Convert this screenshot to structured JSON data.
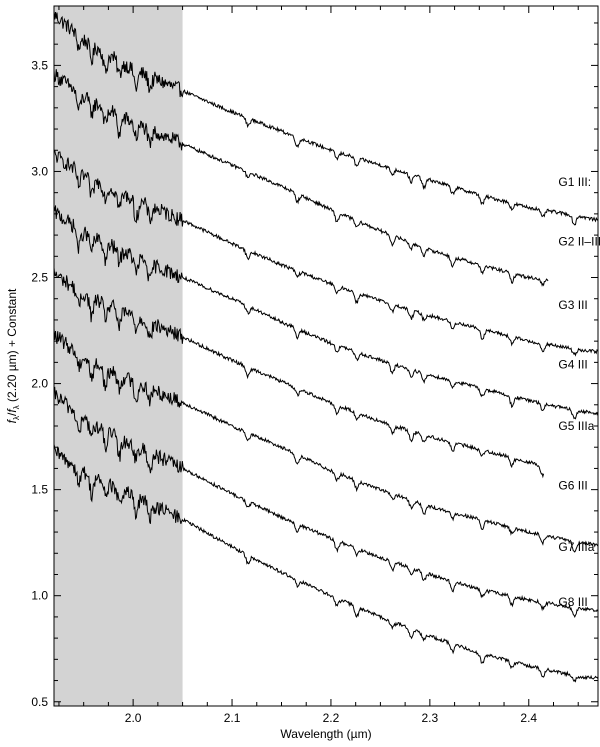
{
  "chart_data": {
    "type": "line",
    "title": "",
    "xlabel": "Wavelength (µm)",
    "ylabel": "fλ / fλ (2.20 µm) + Constant",
    "ylabel_parts": {
      "f1": "f",
      "sub1": "λ",
      "slash": "/",
      "f2": "f",
      "sub2": "λ",
      "rest": " (2.20 µm) + Constant"
    },
    "xlim": [
      1.92,
      2.47
    ],
    "ylim": [
      0.48,
      3.78
    ],
    "x_ticks": [
      2.0,
      2.1,
      2.2,
      2.3,
      2.4
    ],
    "x_tick_labels": [
      "2.0",
      "2.1",
      "2.2",
      "2.3",
      "2.4"
    ],
    "y_ticks": [
      0.5,
      1.0,
      1.5,
      2.0,
      2.5,
      3.0,
      3.5
    ],
    "y_tick_labels": [
      "0.5",
      "1.0",
      "1.5",
      "2.0",
      "2.5",
      "3.0",
      "3.5"
    ],
    "grid": false,
    "legend": "none",
    "shaded_region": {
      "x": [
        1.92,
        2.05
      ],
      "color": "#d3d3d3"
    },
    "line_color": "#000000",
    "absorption_features_um": [
      1.945,
      1.958,
      1.972,
      1.986,
      2.003,
      2.017,
      2.116,
      2.166,
      2.206,
      2.226,
      2.262,
      2.281,
      2.294,
      2.323,
      2.353,
      2.383,
      2.414,
      2.446
    ],
    "series": [
      {
        "name": "G1 III:",
        "x_end": 2.47,
        "points": [
          [
            1.92,
            3.74
          ],
          [
            1.95,
            3.62
          ],
          [
            2.0,
            3.48
          ],
          [
            2.05,
            3.38
          ],
          [
            2.1,
            3.28
          ],
          [
            2.15,
            3.19
          ],
          [
            2.2,
            3.1
          ],
          [
            2.25,
            3.03
          ],
          [
            2.3,
            2.96
          ],
          [
            2.35,
            2.89
          ],
          [
            2.4,
            2.83
          ],
          [
            2.45,
            2.79
          ],
          [
            2.47,
            2.77
          ]
        ]
      },
      {
        "name": "G2 II–III",
        "x_end": 2.42,
        "points": [
          [
            1.92,
            3.46
          ],
          [
            1.95,
            3.35
          ],
          [
            2.0,
            3.23
          ],
          [
            2.05,
            3.13
          ],
          [
            2.1,
            3.03
          ],
          [
            2.15,
            2.93
          ],
          [
            2.2,
            2.82
          ],
          [
            2.25,
            2.72
          ],
          [
            2.3,
            2.63
          ],
          [
            2.35,
            2.56
          ],
          [
            2.4,
            2.5
          ],
          [
            2.42,
            2.49
          ]
        ]
      },
      {
        "name": "G3 III",
        "x_end": 2.47,
        "points": [
          [
            1.92,
            3.08
          ],
          [
            1.95,
            2.98
          ],
          [
            2.0,
            2.87
          ],
          [
            2.05,
            2.77
          ],
          [
            2.1,
            2.66
          ],
          [
            2.15,
            2.56
          ],
          [
            2.2,
            2.47
          ],
          [
            2.25,
            2.39
          ],
          [
            2.3,
            2.32
          ],
          [
            2.35,
            2.26
          ],
          [
            2.4,
            2.2
          ],
          [
            2.45,
            2.16
          ],
          [
            2.47,
            2.15
          ]
        ]
      },
      {
        "name": "G4 III",
        "x_end": 2.47,
        "points": [
          [
            1.92,
            2.81
          ],
          [
            1.95,
            2.71
          ],
          [
            2.0,
            2.6
          ],
          [
            2.05,
            2.5
          ],
          [
            2.1,
            2.4
          ],
          [
            2.15,
            2.29
          ],
          [
            2.2,
            2.19
          ],
          [
            2.25,
            2.11
          ],
          [
            2.3,
            2.04
          ],
          [
            2.35,
            1.98
          ],
          [
            2.4,
            1.92
          ],
          [
            2.45,
            1.87
          ],
          [
            2.47,
            1.86
          ]
        ]
      },
      {
        "name": "G5 IIIa",
        "x_end": 2.415,
        "points": [
          [
            1.92,
            2.52
          ],
          [
            1.95,
            2.42
          ],
          [
            2.0,
            2.32
          ],
          [
            2.05,
            2.22
          ],
          [
            2.1,
            2.11
          ],
          [
            2.15,
            2.01
          ],
          [
            2.2,
            1.91
          ],
          [
            2.25,
            1.82
          ],
          [
            2.3,
            1.75
          ],
          [
            2.35,
            1.69
          ],
          [
            2.4,
            1.63
          ],
          [
            2.415,
            1.61
          ]
        ]
      },
      {
        "name": "G6 III",
        "x_end": 2.47,
        "points": [
          [
            1.92,
            2.23
          ],
          [
            1.95,
            2.12
          ],
          [
            2.0,
            2.01
          ],
          [
            2.05,
            1.91
          ],
          [
            2.1,
            1.8
          ],
          [
            2.15,
            1.7
          ],
          [
            2.2,
            1.59
          ],
          [
            2.25,
            1.5
          ],
          [
            2.3,
            1.42
          ],
          [
            2.35,
            1.36
          ],
          [
            2.4,
            1.3
          ],
          [
            2.45,
            1.25
          ],
          [
            2.47,
            1.24
          ]
        ]
      },
      {
        "name": "G7 IIIa",
        "x_end": 2.47,
        "points": [
          [
            1.92,
            1.95
          ],
          [
            1.95,
            1.83
          ],
          [
            2.0,
            1.71
          ],
          [
            2.05,
            1.6
          ],
          [
            2.1,
            1.48
          ],
          [
            2.15,
            1.37
          ],
          [
            2.2,
            1.27
          ],
          [
            2.25,
            1.18
          ],
          [
            2.3,
            1.1
          ],
          [
            2.35,
            1.03
          ],
          [
            2.4,
            0.98
          ],
          [
            2.45,
            0.94
          ],
          [
            2.47,
            0.93
          ]
        ]
      },
      {
        "name": "G8 III",
        "x_end": 2.47,
        "points": [
          [
            1.92,
            1.68
          ],
          [
            1.95,
            1.58
          ],
          [
            2.0,
            1.47
          ],
          [
            2.05,
            1.36
          ],
          [
            2.1,
            1.23
          ],
          [
            2.15,
            1.11
          ],
          [
            2.2,
            1.0
          ],
          [
            2.25,
            0.9
          ],
          [
            2.3,
            0.81
          ],
          [
            2.35,
            0.73
          ],
          [
            2.4,
            0.67
          ],
          [
            2.45,
            0.62
          ],
          [
            2.47,
            0.61
          ]
        ]
      }
    ],
    "star_labels": [
      {
        "text": "G1 III:",
        "x": 2.43,
        "y": 2.95
      },
      {
        "text": "G2 II–III",
        "x": 2.43,
        "y": 2.67
      },
      {
        "text": "G3 III",
        "x": 2.43,
        "y": 2.37
      },
      {
        "text": "G4 III",
        "x": 2.43,
        "y": 2.09
      },
      {
        "text": "G5 IIIa",
        "x": 2.43,
        "y": 1.8
      },
      {
        "text": "G6 III",
        "x": 2.43,
        "y": 1.52
      },
      {
        "text": "G7 IIIa",
        "x": 2.43,
        "y": 1.23
      },
      {
        "text": "G8 III",
        "x": 2.43,
        "y": 0.97
      }
    ]
  }
}
